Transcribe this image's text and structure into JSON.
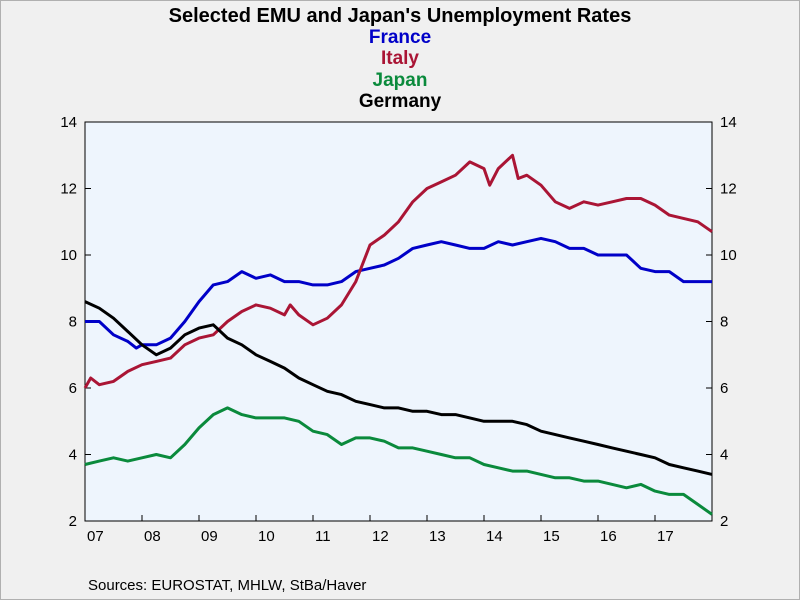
{
  "chart_data": {
    "type": "line",
    "title": "Selected EMU and Japan's Unemployment Rates",
    "source": "Sources:  EUROSTAT, MHLW, StBa/Haver",
    "x_categories": [
      "07",
      "08",
      "09",
      "10",
      "11",
      "12",
      "13",
      "14",
      "15",
      "16",
      "17"
    ],
    "x_domain": [
      2007.0,
      2018.0
    ],
    "ylim": [
      2,
      14
    ],
    "y_ticks": [
      "14",
      "12",
      "10",
      "8",
      "6",
      "4",
      "2"
    ],
    "grid": false,
    "legend_position": "top-center",
    "series": [
      {
        "name": "France",
        "color": "#0000c8",
        "points": [
          [
            2007.0,
            8.0
          ],
          [
            2007.25,
            8.0
          ],
          [
            2007.5,
            7.6
          ],
          [
            2007.75,
            7.4
          ],
          [
            2007.9,
            7.2
          ],
          [
            2008.0,
            7.3
          ],
          [
            2008.25,
            7.3
          ],
          [
            2008.5,
            7.5
          ],
          [
            2008.75,
            8.0
          ],
          [
            2009.0,
            8.6
          ],
          [
            2009.25,
            9.1
          ],
          [
            2009.5,
            9.2
          ],
          [
            2009.75,
            9.5
          ],
          [
            2010.0,
            9.3
          ],
          [
            2010.25,
            9.4
          ],
          [
            2010.5,
            9.2
          ],
          [
            2010.75,
            9.2
          ],
          [
            2011.0,
            9.1
          ],
          [
            2011.25,
            9.1
          ],
          [
            2011.5,
            9.2
          ],
          [
            2011.75,
            9.5
          ],
          [
            2012.0,
            9.6
          ],
          [
            2012.25,
            9.7
          ],
          [
            2012.5,
            9.9
          ],
          [
            2012.75,
            10.2
          ],
          [
            2013.0,
            10.3
          ],
          [
            2013.25,
            10.4
          ],
          [
            2013.5,
            10.3
          ],
          [
            2013.75,
            10.2
          ],
          [
            2014.0,
            10.2
          ],
          [
            2014.25,
            10.4
          ],
          [
            2014.5,
            10.3
          ],
          [
            2014.75,
            10.4
          ],
          [
            2015.0,
            10.5
          ],
          [
            2015.25,
            10.4
          ],
          [
            2015.5,
            10.2
          ],
          [
            2015.75,
            10.2
          ],
          [
            2016.0,
            10.0
          ],
          [
            2016.25,
            10.0
          ],
          [
            2016.5,
            10.0
          ],
          [
            2016.75,
            9.6
          ],
          [
            2017.0,
            9.5
          ],
          [
            2017.25,
            9.5
          ],
          [
            2017.5,
            9.2
          ],
          [
            2017.75,
            9.2
          ],
          [
            2018.0,
            9.2
          ]
        ]
      },
      {
        "name": "Italy",
        "color": "#aa1535",
        "points": [
          [
            2007.0,
            6.0
          ],
          [
            2007.1,
            6.3
          ],
          [
            2007.25,
            6.1
          ],
          [
            2007.5,
            6.2
          ],
          [
            2007.75,
            6.5
          ],
          [
            2008.0,
            6.7
          ],
          [
            2008.25,
            6.8
          ],
          [
            2008.5,
            6.9
          ],
          [
            2008.75,
            7.3
          ],
          [
            2009.0,
            7.5
          ],
          [
            2009.25,
            7.6
          ],
          [
            2009.5,
            8.0
          ],
          [
            2009.75,
            8.3
          ],
          [
            2010.0,
            8.5
          ],
          [
            2010.25,
            8.4
          ],
          [
            2010.5,
            8.2
          ],
          [
            2010.6,
            8.5
          ],
          [
            2010.75,
            8.2
          ],
          [
            2011.0,
            7.9
          ],
          [
            2011.25,
            8.1
          ],
          [
            2011.5,
            8.5
          ],
          [
            2011.75,
            9.2
          ],
          [
            2012.0,
            10.3
          ],
          [
            2012.25,
            10.6
          ],
          [
            2012.5,
            11.0
          ],
          [
            2012.75,
            11.6
          ],
          [
            2013.0,
            12.0
          ],
          [
            2013.25,
            12.2
          ],
          [
            2013.5,
            12.4
          ],
          [
            2013.75,
            12.8
          ],
          [
            2014.0,
            12.6
          ],
          [
            2014.1,
            12.1
          ],
          [
            2014.25,
            12.6
          ],
          [
            2014.5,
            13.0
          ],
          [
            2014.6,
            12.3
          ],
          [
            2014.75,
            12.4
          ],
          [
            2015.0,
            12.1
          ],
          [
            2015.25,
            11.6
          ],
          [
            2015.5,
            11.4
          ],
          [
            2015.75,
            11.6
          ],
          [
            2016.0,
            11.5
          ],
          [
            2016.25,
            11.6
          ],
          [
            2016.5,
            11.7
          ],
          [
            2016.75,
            11.7
          ],
          [
            2017.0,
            11.5
          ],
          [
            2017.25,
            11.2
          ],
          [
            2017.5,
            11.1
          ],
          [
            2017.75,
            11.0
          ],
          [
            2018.0,
            10.7
          ]
        ]
      },
      {
        "name": "Japan",
        "color": "#0a8a3c",
        "points": [
          [
            2007.0,
            3.7
          ],
          [
            2007.25,
            3.8
          ],
          [
            2007.5,
            3.9
          ],
          [
            2007.75,
            3.8
          ],
          [
            2008.0,
            3.9
          ],
          [
            2008.25,
            4.0
          ],
          [
            2008.5,
            3.9
          ],
          [
            2008.75,
            4.3
          ],
          [
            2009.0,
            4.8
          ],
          [
            2009.25,
            5.2
          ],
          [
            2009.5,
            5.4
          ],
          [
            2009.75,
            5.2
          ],
          [
            2010.0,
            5.1
          ],
          [
            2010.25,
            5.1
          ],
          [
            2010.5,
            5.1
          ],
          [
            2010.75,
            5.0
          ],
          [
            2011.0,
            4.7
          ],
          [
            2011.25,
            4.6
          ],
          [
            2011.5,
            4.3
          ],
          [
            2011.75,
            4.5
          ],
          [
            2012.0,
            4.5
          ],
          [
            2012.25,
            4.4
          ],
          [
            2012.5,
            4.2
          ],
          [
            2012.75,
            4.2
          ],
          [
            2013.0,
            4.1
          ],
          [
            2013.25,
            4.0
          ],
          [
            2013.5,
            3.9
          ],
          [
            2013.75,
            3.9
          ],
          [
            2014.0,
            3.7
          ],
          [
            2014.25,
            3.6
          ],
          [
            2014.5,
            3.5
          ],
          [
            2014.75,
            3.5
          ],
          [
            2015.0,
            3.4
          ],
          [
            2015.25,
            3.3
          ],
          [
            2015.5,
            3.3
          ],
          [
            2015.75,
            3.2
          ],
          [
            2016.0,
            3.2
          ],
          [
            2016.25,
            3.1
          ],
          [
            2016.5,
            3.0
          ],
          [
            2016.75,
            3.1
          ],
          [
            2017.0,
            2.9
          ],
          [
            2017.25,
            2.8
          ],
          [
            2017.5,
            2.8
          ],
          [
            2017.75,
            2.5
          ],
          [
            2018.0,
            2.2
          ]
        ]
      },
      {
        "name": "Germany",
        "color": "#000000",
        "points": [
          [
            2007.0,
            8.6
          ],
          [
            2007.25,
            8.4
          ],
          [
            2007.5,
            8.1
          ],
          [
            2007.75,
            7.7
          ],
          [
            2008.0,
            7.3
          ],
          [
            2008.25,
            7.0
          ],
          [
            2008.5,
            7.2
          ],
          [
            2008.75,
            7.6
          ],
          [
            2009.0,
            7.8
          ],
          [
            2009.25,
            7.9
          ],
          [
            2009.5,
            7.5
          ],
          [
            2009.75,
            7.3
          ],
          [
            2010.0,
            7.0
          ],
          [
            2010.25,
            6.8
          ],
          [
            2010.5,
            6.6
          ],
          [
            2010.75,
            6.3
          ],
          [
            2011.0,
            6.1
          ],
          [
            2011.25,
            5.9
          ],
          [
            2011.5,
            5.8
          ],
          [
            2011.75,
            5.6
          ],
          [
            2012.0,
            5.5
          ],
          [
            2012.25,
            5.4
          ],
          [
            2012.5,
            5.4
          ],
          [
            2012.75,
            5.3
          ],
          [
            2013.0,
            5.3
          ],
          [
            2013.25,
            5.2
          ],
          [
            2013.5,
            5.2
          ],
          [
            2013.75,
            5.1
          ],
          [
            2014.0,
            5.0
          ],
          [
            2014.25,
            5.0
          ],
          [
            2014.5,
            5.0
          ],
          [
            2014.75,
            4.9
          ],
          [
            2015.0,
            4.7
          ],
          [
            2015.25,
            4.6
          ],
          [
            2015.5,
            4.5
          ],
          [
            2015.75,
            4.4
          ],
          [
            2016.0,
            4.3
          ],
          [
            2016.25,
            4.2
          ],
          [
            2016.5,
            4.1
          ],
          [
            2016.75,
            4.0
          ],
          [
            2017.0,
            3.9
          ],
          [
            2017.25,
            3.7
          ],
          [
            2017.5,
            3.6
          ],
          [
            2017.75,
            3.5
          ],
          [
            2018.0,
            3.4
          ]
        ]
      }
    ]
  }
}
